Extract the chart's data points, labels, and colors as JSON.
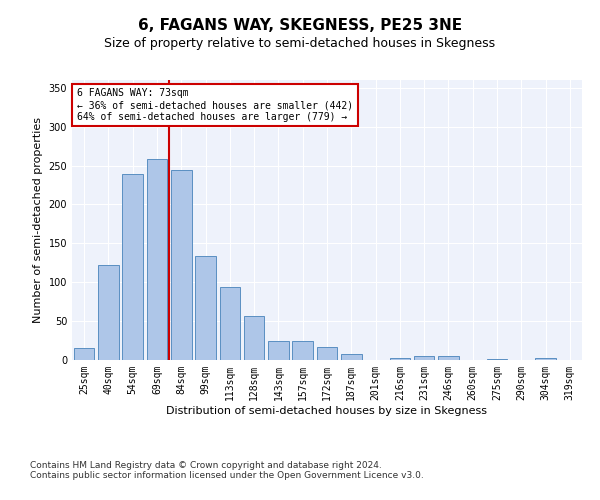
{
  "title": "6, FAGANS WAY, SKEGNESS, PE25 3NE",
  "subtitle": "Size of property relative to semi-detached houses in Skegness",
  "xlabel": "Distribution of semi-detached houses by size in Skegness",
  "ylabel": "Number of semi-detached properties",
  "categories": [
    "25sqm",
    "40sqm",
    "54sqm",
    "69sqm",
    "84sqm",
    "99sqm",
    "113sqm",
    "128sqm",
    "143sqm",
    "157sqm",
    "172sqm",
    "187sqm",
    "201sqm",
    "216sqm",
    "231sqm",
    "246sqm",
    "260sqm",
    "275sqm",
    "290sqm",
    "304sqm",
    "319sqm"
  ],
  "values": [
    16,
    122,
    239,
    258,
    244,
    134,
    94,
    56,
    25,
    25,
    17,
    8,
    0,
    3,
    5,
    5,
    0,
    1,
    0,
    3,
    0
  ],
  "bar_color": "#aec6e8",
  "bar_edge_color": "#5a8fc2",
  "vline_color": "#cc0000",
  "annotation_text": "6 FAGANS WAY: 73sqm\n← 36% of semi-detached houses are smaller (442)\n64% of semi-detached houses are larger (779) →",
  "annotation_box_color": "white",
  "annotation_box_edge_color": "#cc0000",
  "footnote": "Contains HM Land Registry data © Crown copyright and database right 2024.\nContains public sector information licensed under the Open Government Licence v3.0.",
  "ylim": [
    0,
    360
  ],
  "background_color": "#eef2fb",
  "grid_color": "white",
  "title_fontsize": 11,
  "subtitle_fontsize": 9,
  "axis_label_fontsize": 8,
  "tick_fontsize": 7,
  "footnote_fontsize": 6.5
}
